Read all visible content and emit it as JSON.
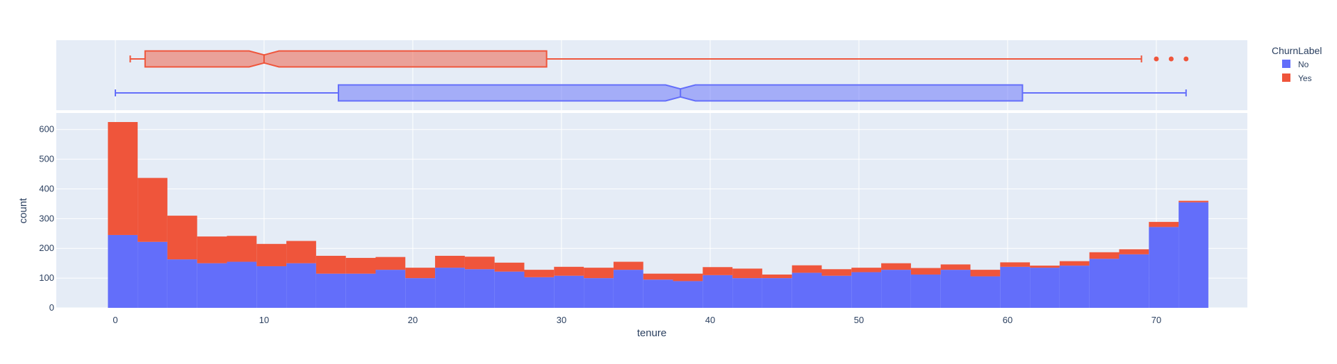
{
  "chart_data": {
    "type": "bar",
    "subtype": "stacked-histogram-with-marginal-boxplot",
    "xlabel": "tenure",
    "ylabel": "count",
    "xlim": [
      -0.5,
      73.5
    ],
    "ylim": [
      0,
      650
    ],
    "x_ticks": [
      0,
      10,
      20,
      30,
      40,
      50,
      60,
      70
    ],
    "y_ticks": [
      0,
      100,
      200,
      300,
      400,
      500,
      600
    ],
    "bin_width": 2,
    "bin_starts": [
      -0.5,
      1.5,
      3.5,
      5.5,
      7.5,
      9.5,
      11.5,
      13.5,
      15.5,
      17.5,
      19.5,
      21.5,
      23.5,
      25.5,
      27.5,
      29.5,
      31.5,
      33.5,
      35.5,
      37.5,
      39.5,
      41.5,
      43.5,
      45.5,
      47.5,
      49.5,
      51.5,
      53.5,
      55.5,
      57.5,
      59.5,
      61.5,
      63.5,
      65.5,
      67.5,
      69.5,
      71.5
    ],
    "grid": true,
    "legend": {
      "title": "ChurnLabel",
      "placement": "top-right",
      "items": [
        {
          "label": "No",
          "color": "#636efa"
        },
        {
          "label": "Yes",
          "color": "#ef553b"
        }
      ]
    },
    "series": [
      {
        "name": "No",
        "color": "#636efa",
        "values": [
          245,
          222,
          163,
          150,
          155,
          140,
          150,
          115,
          115,
          128,
          100,
          135,
          130,
          122,
          103,
          108,
          100,
          128,
          95,
          90,
          110,
          100,
          100,
          118,
          108,
          120,
          128,
          112,
          128,
          106,
          138,
          135,
          142,
          165,
          180,
          272,
          355
        ]
      },
      {
        "name": "Yes",
        "color": "#ef553b",
        "values": [
          380,
          215,
          147,
          90,
          87,
          75,
          75,
          60,
          53,
          43,
          35,
          40,
          42,
          30,
          25,
          30,
          35,
          27,
          20,
          25,
          27,
          32,
          12,
          25,
          22,
          15,
          22,
          22,
          18,
          22,
          15,
          7,
          15,
          22,
          17,
          17,
          5
        ]
      }
    ],
    "boxplots": [
      {
        "name": "Yes",
        "color": "#ef553b",
        "whisker_low": 1,
        "q1": 2,
        "median": 10,
        "notch_low": 9,
        "notch_high": 11,
        "q3": 29,
        "whisker_high": 69,
        "outliers": [
          70,
          71,
          72
        ]
      },
      {
        "name": "No",
        "color": "#636efa",
        "whisker_low": 0,
        "q1": 15,
        "median": 38,
        "notch_low": 37,
        "notch_high": 39,
        "q3": 61,
        "whisker_high": 72,
        "outliers": []
      }
    ]
  }
}
